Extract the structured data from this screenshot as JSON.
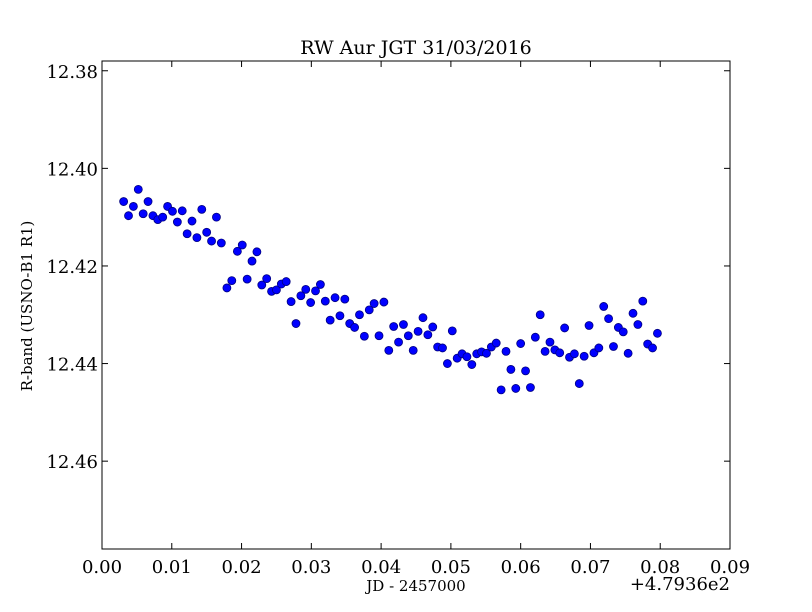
{
  "chart_data": {
    "type": "scatter",
    "title": "RW Aur JGT 31/03/2016",
    "xlabel": "JD - 2457000",
    "ylabel": "R-band (USNO-B1 R1)",
    "x_offset_label": "+4.7936e2",
    "xlim": [
      0.0,
      0.09
    ],
    "ylim": [
      12.478,
      12.378
    ],
    "y_inverted": true,
    "x_ticks": [
      0.0,
      0.01,
      0.02,
      0.03,
      0.04,
      0.05,
      0.06,
      0.07,
      0.08,
      0.09
    ],
    "x_tick_labels": [
      "0.00",
      "0.01",
      "0.02",
      "0.03",
      "0.04",
      "0.05",
      "0.06",
      "0.07",
      "0.08",
      "0.09"
    ],
    "y_ticks": [
      12.38,
      12.4,
      12.42,
      12.44,
      12.46
    ],
    "y_tick_labels": [
      "12.38",
      "12.40",
      "12.42",
      "12.44",
      "12.46"
    ],
    "grid": false,
    "marker_color": "#0000ff",
    "marker_edge_color": "#000080",
    "series": [
      {
        "name": "R-band",
        "points": [
          [
            0.0031,
            12.4068
          ],
          [
            0.0038,
            12.4097
          ],
          [
            0.0045,
            12.4078
          ],
          [
            0.0052,
            12.4043
          ],
          [
            0.0059,
            12.4093
          ],
          [
            0.0066,
            12.4068
          ],
          [
            0.0073,
            12.4097
          ],
          [
            0.008,
            12.4105
          ],
          [
            0.0087,
            12.41
          ],
          [
            0.0094,
            12.4078
          ],
          [
            0.0101,
            12.4088
          ],
          [
            0.0108,
            12.411
          ],
          [
            0.0115,
            12.4087
          ],
          [
            0.0122,
            12.4134
          ],
          [
            0.0129,
            12.4108
          ],
          [
            0.0136,
            12.4142
          ],
          [
            0.0143,
            12.4084
          ],
          [
            0.015,
            12.4131
          ],
          [
            0.0157,
            12.4149
          ],
          [
            0.0164,
            12.41
          ],
          [
            0.0171,
            12.4153
          ],
          [
            0.0179,
            12.4245
          ],
          [
            0.0186,
            12.423
          ],
          [
            0.0194,
            12.417
          ],
          [
            0.0201,
            12.4157
          ],
          [
            0.0208,
            12.4227
          ],
          [
            0.0215,
            12.419
          ],
          [
            0.0222,
            12.4171
          ],
          [
            0.0229,
            12.4239
          ],
          [
            0.0236,
            12.4226
          ],
          [
            0.0243,
            12.4252
          ],
          [
            0.025,
            12.4249
          ],
          [
            0.0257,
            12.4237
          ],
          [
            0.0264,
            12.4232
          ],
          [
            0.0271,
            12.4273
          ],
          [
            0.0278,
            12.4318
          ],
          [
            0.0285,
            12.4261
          ],
          [
            0.0292,
            12.4248
          ],
          [
            0.0299,
            12.4275
          ],
          [
            0.0306,
            12.4251
          ],
          [
            0.0313,
            12.4238
          ],
          [
            0.032,
            12.4272
          ],
          [
            0.0327,
            12.4311
          ],
          [
            0.0334,
            12.4265
          ],
          [
            0.0341,
            12.4302
          ],
          [
            0.0348,
            12.4268
          ],
          [
            0.0355,
            12.4318
          ],
          [
            0.0362,
            12.4326
          ],
          [
            0.0369,
            12.43
          ],
          [
            0.0376,
            12.4344
          ],
          [
            0.0383,
            12.429
          ],
          [
            0.039,
            12.4277
          ],
          [
            0.0397,
            12.4343
          ],
          [
            0.0404,
            12.4274
          ],
          [
            0.0411,
            12.4373
          ],
          [
            0.0418,
            12.4324
          ],
          [
            0.0425,
            12.4356
          ],
          [
            0.0432,
            12.432
          ],
          [
            0.0439,
            12.4343
          ],
          [
            0.0446,
            12.4373
          ],
          [
            0.0453,
            12.4334
          ],
          [
            0.046,
            12.4306
          ],
          [
            0.0467,
            12.4341
          ],
          [
            0.0474,
            12.4325
          ],
          [
            0.0481,
            12.4366
          ],
          [
            0.0488,
            12.4368
          ],
          [
            0.0495,
            12.44
          ],
          [
            0.0502,
            12.4333
          ],
          [
            0.0509,
            12.4389
          ],
          [
            0.0516,
            12.438
          ],
          [
            0.0523,
            12.4386
          ],
          [
            0.053,
            12.4402
          ],
          [
            0.0537,
            12.438
          ],
          [
            0.0544,
            12.4376
          ],
          [
            0.0551,
            12.4379
          ],
          [
            0.0558,
            12.4366
          ],
          [
            0.0565,
            12.4358
          ],
          [
            0.0572,
            12.4454
          ],
          [
            0.0579,
            12.4375
          ],
          [
            0.0586,
            12.4412
          ],
          [
            0.0593,
            12.4451
          ],
          [
            0.06,
            12.4359
          ],
          [
            0.0607,
            12.4415
          ],
          [
            0.0614,
            12.4449
          ],
          [
            0.0621,
            12.4346
          ],
          [
            0.0628,
            12.43
          ],
          [
            0.0635,
            12.4375
          ],
          [
            0.0642,
            12.4356
          ],
          [
            0.0649,
            12.4372
          ],
          [
            0.0656,
            12.4378
          ],
          [
            0.0663,
            12.4327
          ],
          [
            0.067,
            12.4387
          ],
          [
            0.0677,
            12.438
          ],
          [
            0.0684,
            12.4441
          ],
          [
            0.0691,
            12.4385
          ],
          [
            0.0698,
            12.4322
          ],
          [
            0.0705,
            12.4378
          ],
          [
            0.0712,
            12.4368
          ],
          [
            0.0719,
            12.4283
          ],
          [
            0.0726,
            12.4308
          ],
          [
            0.0733,
            12.4365
          ],
          [
            0.074,
            12.4326
          ],
          [
            0.0747,
            12.4335
          ],
          [
            0.0754,
            12.4379
          ],
          [
            0.0761,
            12.4297
          ],
          [
            0.0768,
            12.432
          ],
          [
            0.0775,
            12.4272
          ],
          [
            0.0782,
            12.436
          ],
          [
            0.0789,
            12.4368
          ],
          [
            0.0796,
            12.4338
          ]
        ]
      }
    ]
  }
}
